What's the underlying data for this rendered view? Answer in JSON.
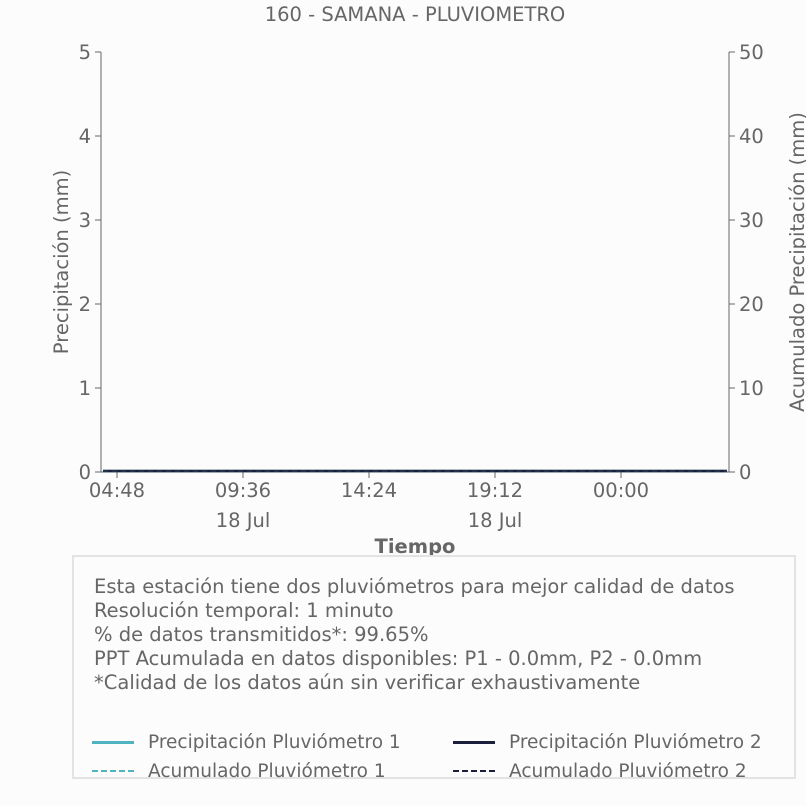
{
  "chart_data": {
    "type": "line",
    "title": "160 - SAMANA - PLUVIOMETRO",
    "xlabel": "Tiempo",
    "ylabel": "Precipitación (mm)",
    "y2label": "Acumulado Precipitación (mm)",
    "ylim": [
      0,
      5
    ],
    "y2lim": [
      0,
      50
    ],
    "yticks": [
      "0",
      "1",
      "2",
      "3",
      "4",
      "5"
    ],
    "y2ticks": [
      "0",
      "10",
      "20",
      "30",
      "40",
      "50"
    ],
    "xticks": [
      {
        "time": "04:48",
        "date": ""
      },
      {
        "time": "09:36",
        "date": "18 Jul"
      },
      {
        "time": "14:24",
        "date": ""
      },
      {
        "time": "19:12",
        "date": "18 Jul"
      },
      {
        "time": "00:00",
        "date": ""
      }
    ],
    "grid": false,
    "series": [
      {
        "name": "Precipitación Pluviómetro 1",
        "axis": "left",
        "style": "solid",
        "color": "#4fb3c0",
        "values": [
          0,
          0,
          0,
          0,
          0,
          0
        ]
      },
      {
        "name": "Precipitación Pluviómetro 2",
        "axis": "left",
        "style": "solid",
        "color": "#1b1f3b",
        "values": [
          0,
          0,
          0,
          0,
          0,
          0
        ]
      },
      {
        "name": "Acumulado Pluviómetro 1",
        "axis": "right",
        "style": "dashed",
        "color": "#4fb3c0",
        "values": [
          0,
          0,
          0,
          0,
          0,
          0
        ]
      },
      {
        "name": "Acumulado Pluviómetro 2",
        "axis": "right",
        "style": "dashed",
        "color": "#1b1f3b",
        "values": [
          0,
          0,
          0,
          0,
          0,
          0
        ]
      }
    ]
  },
  "info_box": {
    "lines": [
      "Esta estación tiene dos pluviómetros para mejor calidad de datos",
      "Resolución temporal: 1 minuto",
      "% de datos transmitidos*: 99.65%",
      "PPT Acumulada en datos disponibles: P1 - 0.0mm, P2 - 0.0mm",
      "*Calidad de los datos aún sin verificar exhaustivamente"
    ]
  }
}
